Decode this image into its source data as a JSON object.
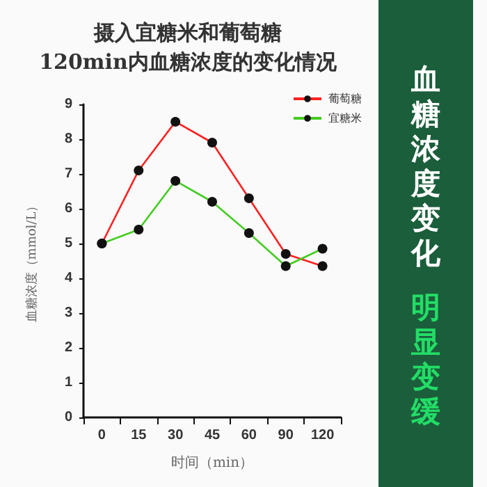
{
  "chart_data": {
    "type": "line",
    "title": "摄入宜糖米和葡萄糖\n120min内血糖浓度的变化情况",
    "xlabel": "时间（min）",
    "ylabel": "血糖浓度（mmol/L）",
    "categories": [
      "0",
      "15",
      "30",
      "45",
      "60",
      "90",
      "120"
    ],
    "series": [
      {
        "name": "葡萄糖",
        "color": "#ff2020",
        "values": [
          5,
          7.1,
          8.5,
          7.9,
          6.3,
          4.7,
          4.35
        ]
      },
      {
        "name": "宜糖米",
        "color": "#44cc22",
        "values": [
          5,
          5.4,
          6.8,
          6.2,
          5.3,
          4.35,
          4.85
        ]
      }
    ],
    "ylim": [
      0,
      9
    ],
    "yticks": [
      0,
      1,
      2,
      3,
      4,
      5,
      6,
      7,
      8,
      9
    ],
    "grid": false,
    "legend": "top right",
    "marker": "circle",
    "line_style": "solid",
    "annotations": [
      "血糖浓度变化",
      "明显变缓"
    ]
  }
}
